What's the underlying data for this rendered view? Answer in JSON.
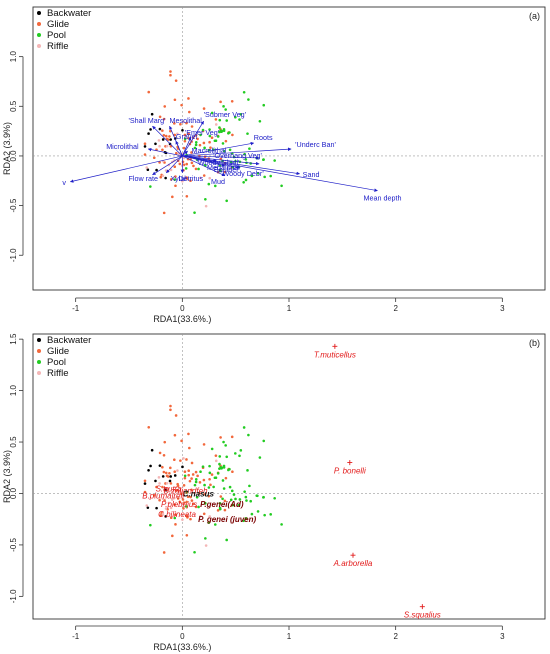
{
  "chart_data": [
    {
      "panel_label": "(a)",
      "type": "scatter",
      "xlabel": "RDA1(33.6%.)",
      "ylabel": "RDA2 (3.9%)",
      "xlim": [
        -1.4,
        3.4
      ],
      "ylim": [
        -1.35,
        1.5
      ],
      "xticks": [
        "-1",
        "0",
        "1",
        "2",
        "3"
      ],
      "yticks": [
        "-1.0",
        "-0.5",
        "0.0",
        "0.5",
        "1.0"
      ],
      "legend": {
        "position": "top-left",
        "entries": [
          {
            "name": "Backwater",
            "color": "#000000"
          },
          {
            "name": "Glide",
            "color": "#f2683c"
          },
          {
            "name": "Pool",
            "color": "#22cc22"
          },
          {
            "name": "Riffle",
            "color": "#f4b6b6"
          }
        ]
      },
      "vector_color": "#2020c8",
      "vectors": [
        {
          "label": "v",
          "x": -1.05,
          "y": -0.26
        },
        {
          "label": "Flow rate",
          "x": -0.28,
          "y": -0.19
        },
        {
          "label": "Xylal",
          "x": -0.15,
          "y": -0.17
        },
        {
          "label": "Microlithal",
          "x": -0.32,
          "y": 0.07
        },
        {
          "label": "'Shall Marg'",
          "x": -0.28,
          "y": 0.3
        },
        {
          "label": "Gravel",
          "x": -0.06,
          "y": 0.15
        },
        {
          "label": "Mesolithal",
          "x": -0.12,
          "y": 0.3
        },
        {
          "label": "'Emer Veg'",
          "x": 0.08,
          "y": 0.19
        },
        {
          "label": "Macrolithal",
          "x": 0.05,
          "y": 0.05
        },
        {
          "label": "'Submer Veg'",
          "x": 0.2,
          "y": 0.35
        },
        {
          "label": "Roots",
          "x": 0.67,
          "y": 0.13
        },
        {
          "label": "'Underc Ban'",
          "x": 1.02,
          "y": 0.07
        },
        {
          "label": "'Overhang Veg'",
          "x": 0.72,
          "y": -0.02
        },
        {
          "label": "'Woody Debr'",
          "x": 0.72,
          "y": -0.08
        },
        {
          "label": "'Woody Shall'",
          "x": 0.32,
          "y": -0.05
        },
        {
          "label": "Megalithal",
          "x": 0.4,
          "y": -0.1
        },
        {
          "label": "Boulder",
          "x": 0.54,
          "y": -0.12
        },
        {
          "label": "Detritus",
          "x": 0.0,
          "y": -0.17
        },
        {
          "label": "Mud",
          "x": 0.4,
          "y": -0.2
        },
        {
          "label": "Sand",
          "x": 1.1,
          "y": -0.18
        },
        {
          "label": "Mean depth",
          "x": 1.83,
          "y": -0.35
        }
      ]
    },
    {
      "panel_label": "(b)",
      "type": "scatter",
      "xlabel": "RDA1(33.6%.)",
      "ylabel": "RDA2 (3.9%)",
      "xlim": [
        -1.4,
        3.4
      ],
      "ylim": [
        -1.22,
        1.55
      ],
      "xticks": [
        "-1",
        "0",
        "1",
        "2",
        "3"
      ],
      "yticks": [
        "-1.0",
        "-0.5",
        "0.0",
        "0.5",
        "1.0",
        "1.5"
      ],
      "legend": {
        "position": "top-left",
        "entries": [
          {
            "name": "Backwater",
            "color": "#000000"
          },
          {
            "name": "Glide",
            "color": "#f2683c"
          },
          {
            "name": "Pool",
            "color": "#22cc22"
          },
          {
            "name": "Riffle",
            "color": "#f4b6b6"
          }
        ]
      },
      "species": [
        {
          "label": "T.muticellus",
          "x": 1.43,
          "y": 1.43,
          "color": "#e21a1a",
          "bold": false
        },
        {
          "label": "P. bonelli",
          "x": 1.57,
          "y": 0.3,
          "color": "#e21a1a",
          "bold": false
        },
        {
          "label": "A.arborella",
          "x": 1.6,
          "y": -0.6,
          "color": "#e21a1a",
          "bold": false
        },
        {
          "label": "S.squalius",
          "x": 2.25,
          "y": -1.1,
          "color": "#e21a1a",
          "bold": false
        },
        {
          "label": "S.trutta",
          "x": -0.13,
          "y": 0.05,
          "color": "#e21a1a",
          "bold": false
        },
        {
          "label": "B.zaljandfeh",
          "x": 0.03,
          "y": 0.03,
          "color": "#e21a1a",
          "bold": false
        },
        {
          "label": "C.nasus",
          "x": 0.15,
          "y": 0.0,
          "color": "#111111",
          "bold": true
        },
        {
          "label": "B.plumaireil",
          "x": -0.18,
          "y": -0.02,
          "color": "#e21a1a",
          "bold": false
        },
        {
          "label": "P.plebejus",
          "x": -0.03,
          "y": -0.1,
          "color": "#e21a1a",
          "bold": false
        },
        {
          "label": "P.genei(Ad)",
          "x": 0.37,
          "y": -0.1,
          "color": "#7a0000",
          "bold": true
        },
        {
          "label": "C.bilineata",
          "x": -0.05,
          "y": -0.2,
          "color": "#e21a1a",
          "bold": false
        },
        {
          "label": "P. genei (juven)",
          "x": 0.42,
          "y": -0.25,
          "color": "#7a0000",
          "bold": true
        }
      ]
    }
  ]
}
